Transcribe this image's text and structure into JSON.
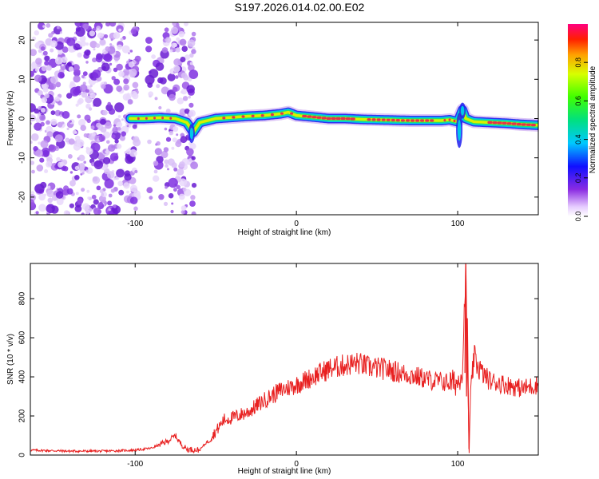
{
  "title": "S197.2026.014.02.00.E02",
  "colors": {
    "snr_line": "#e82020",
    "ridge_peak": "#e8304a",
    "scatter": "#8a2be2",
    "axis": "#000000",
    "background": "#ffffff"
  },
  "chart_data": [
    {
      "type": "heatmap",
      "title": "S197.2026.014.02.00.E02",
      "xlabel": "Height of straight line (km)",
      "ylabel": "Frequency (Hz)",
      "xlim": [
        -165,
        150
      ],
      "ylim": [
        -24.5,
        24.5
      ],
      "xticks": [
        -100,
        0,
        100
      ],
      "yticks": [
        -20,
        -10,
        0,
        10,
        20
      ],
      "noise_regions": [
        {
          "x_range": [
            -165,
            -98
          ],
          "density": "high"
        },
        {
          "x_range": [
            -92,
            -79
          ],
          "density": "medium"
        },
        {
          "x_range": [
            -78,
            -63
          ],
          "density": "high"
        }
      ],
      "ridge": {
        "x": [
          -103,
          -95,
          -85,
          -75,
          -68,
          -64,
          -60,
          -50,
          -40,
          -30,
          -20,
          -10,
          -5,
          0,
          10,
          20,
          30,
          40,
          50,
          60,
          70,
          80,
          90,
          95,
          100,
          103,
          105,
          110,
          120,
          130,
          140,
          150
        ],
        "y": [
          0,
          0,
          0.2,
          0,
          -1,
          -3.5,
          -1,
          0,
          0.3,
          0.6,
          0.8,
          1.2,
          1.6,
          0.8,
          0.4,
          0,
          0,
          -0.2,
          -0.3,
          -0.4,
          -0.5,
          -0.5,
          -0.5,
          -0.3,
          -0.8,
          2.2,
          0,
          -0.8,
          -1,
          -1.2,
          -1.5,
          -1.7
        ]
      },
      "colorbar": {
        "label": "Normalized spectral amplitude",
        "range": [
          0.0,
          1.0
        ],
        "ticks": [
          0.0,
          0.2,
          0.4,
          0.6,
          0.8
        ],
        "tick_labels": [
          "0.0",
          "0.2",
          "0.4",
          "0.6",
          "0.8"
        ]
      }
    },
    {
      "type": "line",
      "title": "",
      "xlabel": "Height of straight line (km)",
      "ylabel": "SNR (10 * v/v)",
      "xlim": [
        -165,
        150
      ],
      "ylim": [
        0,
        980
      ],
      "xticks": [
        -100,
        0,
        100
      ],
      "yticks": [
        0,
        200,
        400,
        600,
        800
      ],
      "series": [
        {
          "name": "SNR",
          "x": [
            -165,
            -140,
            -120,
            -100,
            -90,
            -80,
            -75,
            -72,
            -68,
            -60,
            -50,
            -45,
            -40,
            -30,
            -20,
            -10,
            0,
            10,
            20,
            30,
            38,
            45,
            55,
            65,
            75,
            85,
            95,
            100,
            103,
            105,
            106,
            107,
            108,
            110,
            115,
            120,
            130,
            140,
            150
          ],
          "y": [
            25,
            20,
            20,
            25,
            35,
            70,
            100,
            60,
            30,
            25,
            120,
            180,
            190,
            220,
            280,
            330,
            360,
            400,
            440,
            460,
            470,
            450,
            440,
            420,
            400,
            380,
            370,
            370,
            440,
            960,
            500,
            30,
            280,
            500,
            420,
            380,
            360,
            340,
            360
          ]
        }
      ]
    }
  ]
}
